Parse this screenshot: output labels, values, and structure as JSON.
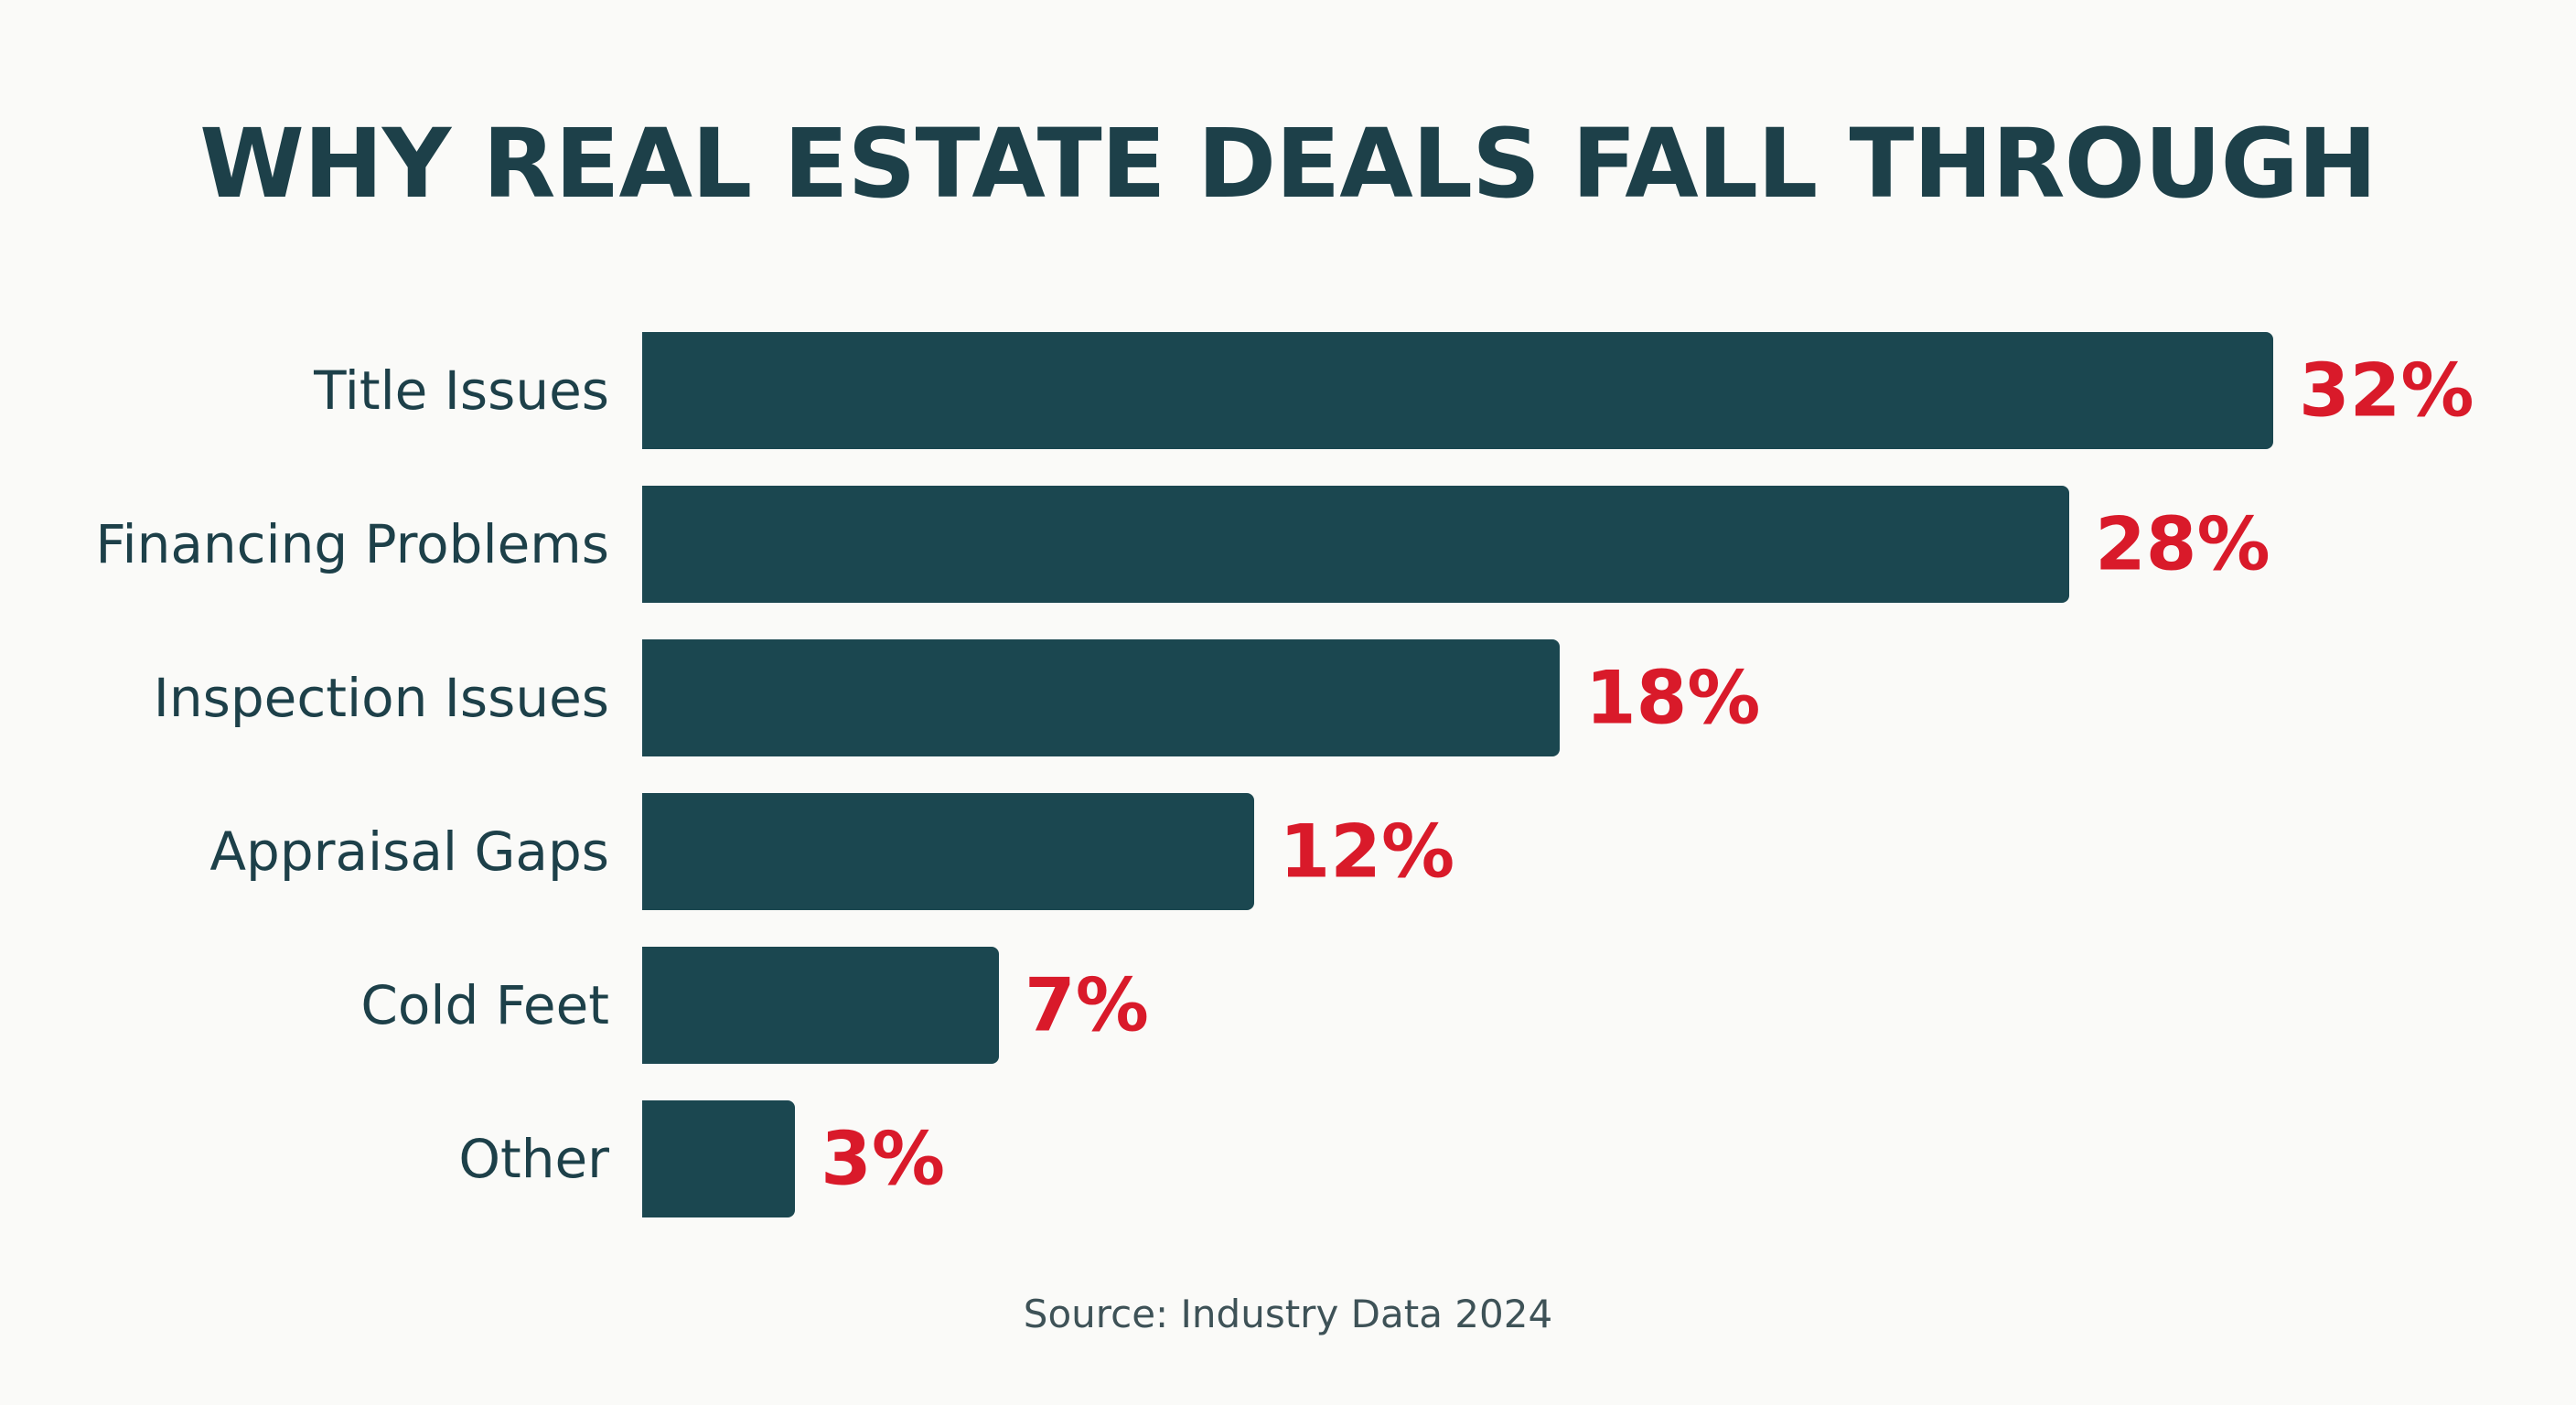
{
  "chart_data": {
    "type": "bar",
    "orientation": "horizontal",
    "title": "WHY REAL ESTATE DEALS FALL THROUGH",
    "categories": [
      "Title Issues",
      "Financing Problems",
      "Inspection Issues",
      "Appraisal Gaps",
      "Cold Feet",
      "Other"
    ],
    "values": [
      32,
      28,
      18,
      12,
      7,
      3
    ],
    "value_labels": [
      "32%",
      "28%",
      "18%",
      "12%",
      "7%",
      "3%"
    ],
    "xlim": [
      0,
      32
    ],
    "grid": false,
    "bar_color": "#1b4750",
    "label_color": "#d91a2a",
    "source": "Source: Industry Data 2024"
  }
}
